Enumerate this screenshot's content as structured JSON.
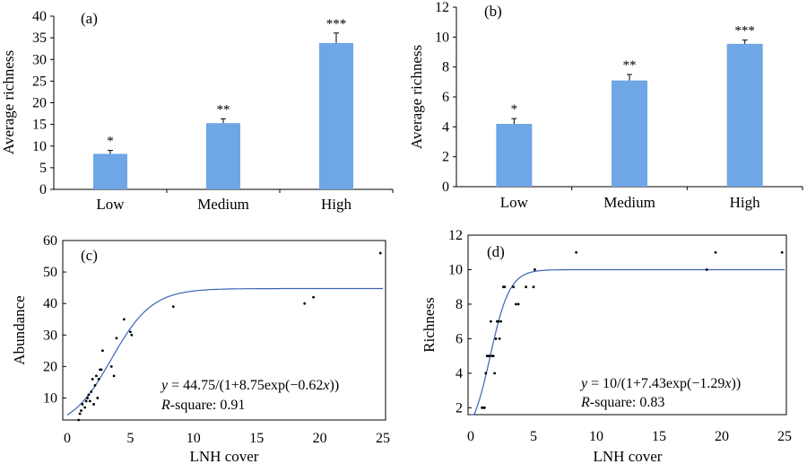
{
  "chart_data": [
    {
      "type": "bar",
      "panel_label": "(a)",
      "ylabel": "Average richness",
      "categories": [
        "Low",
        "Medium",
        "High"
      ],
      "values": [
        8.2,
        15.3,
        33.8
      ],
      "errors": [
        0.8,
        1.0,
        2.3
      ],
      "significance": [
        "*",
        "**",
        "***"
      ],
      "ylim": [
        0,
        40
      ],
      "yticks": [
        "0",
        "5",
        "10",
        "15",
        "20",
        "25",
        "30",
        "35",
        "40"
      ],
      "colors": {
        "bar": "#6ea6e6"
      }
    },
    {
      "type": "bar",
      "panel_label": "(b)",
      "ylabel": "Average richness",
      "categories": [
        "Low",
        "Medium",
        "High"
      ],
      "values": [
        4.2,
        7.1,
        9.55
      ],
      "errors": [
        0.35,
        0.4,
        0.25
      ],
      "significance": [
        "*",
        "**",
        "***"
      ],
      "ylim": [
        0,
        12
      ],
      "yticks": [
        "0",
        "2",
        "4",
        "6",
        "8",
        "10",
        "12"
      ],
      "colors": {
        "bar": "#6ea6e6"
      }
    },
    {
      "type": "scatter",
      "panel_label": "(c)",
      "xlabel": "LNH cover",
      "ylabel": "Abundance",
      "xlim": [
        0,
        25
      ],
      "ylim": [
        3,
        60
      ],
      "xticks": [
        "0",
        "5",
        "10",
        "15",
        "20",
        "25"
      ],
      "yticks": [
        "10",
        "20",
        "30",
        "40",
        "50",
        "60"
      ],
      "points": [
        [
          0.9,
          3
        ],
        [
          1.0,
          5
        ],
        [
          1.1,
          6
        ],
        [
          1.2,
          8
        ],
        [
          1.4,
          7
        ],
        [
          1.5,
          9
        ],
        [
          1.6,
          10
        ],
        [
          1.7,
          11
        ],
        [
          1.8,
          9
        ],
        [
          1.9,
          12
        ],
        [
          2.0,
          16
        ],
        [
          2.1,
          8
        ],
        [
          2.2,
          14
        ],
        [
          2.3,
          17
        ],
        [
          2.4,
          10
        ],
        [
          2.5,
          16
        ],
        [
          2.6,
          19
        ],
        [
          2.7,
          19
        ],
        [
          2.8,
          25
        ],
        [
          3.5,
          20
        ],
        [
          3.7,
          17
        ],
        [
          3.9,
          29
        ],
        [
          4.5,
          35
        ],
        [
          5.0,
          31
        ],
        [
          5.1,
          30
        ],
        [
          8.4,
          39
        ],
        [
          18.8,
          40
        ],
        [
          19.5,
          42
        ],
        [
          24.8,
          56
        ]
      ],
      "fit": {
        "A": 44.75,
        "B": 8.75,
        "k": 0.62
      },
      "equation": {
        "y": "y",
        "rest": " = 44.75/(1+8.75exp(−0.62",
        "x": "x",
        "close": "))"
      },
      "r_squared": {
        "r": "R",
        "rest": "-square: 0.91"
      },
      "colors": {
        "curve": "#3c64b4",
        "points": "#000000"
      }
    },
    {
      "type": "scatter",
      "panel_label": "(d)",
      "xlabel": "LNH cover",
      "ylabel": "Richness",
      "xlim": [
        0,
        25
      ],
      "ylim": [
        1.6,
        12
      ],
      "xticks": [
        "0",
        "5",
        "10",
        "15",
        "20",
        "25"
      ],
      "yticks": [
        "2",
        "4",
        "6",
        "8",
        "10",
        "12"
      ],
      "points": [
        [
          0.9,
          2
        ],
        [
          1.0,
          2
        ],
        [
          1.1,
          2
        ],
        [
          1.2,
          4
        ],
        [
          1.3,
          5
        ],
        [
          1.4,
          5
        ],
        [
          1.5,
          5
        ],
        [
          1.6,
          7
        ],
        [
          1.7,
          5
        ],
        [
          1.8,
          5
        ],
        [
          1.9,
          4
        ],
        [
          2.0,
          6
        ],
        [
          2.1,
          7
        ],
        [
          2.2,
          7
        ],
        [
          2.3,
          6
        ],
        [
          2.4,
          7
        ],
        [
          2.6,
          9
        ],
        [
          2.7,
          9
        ],
        [
          3.4,
          9
        ],
        [
          3.6,
          8
        ],
        [
          3.8,
          8
        ],
        [
          4.4,
          9
        ],
        [
          5.0,
          9
        ],
        [
          5.1,
          10
        ],
        [
          8.4,
          11
        ],
        [
          18.8,
          10
        ],
        [
          19.5,
          11
        ],
        [
          24.8,
          11
        ]
      ],
      "fit": {
        "A": 10,
        "B": 7.43,
        "k": 1.29
      },
      "equation": {
        "y": "y",
        "rest": " = 10/(1+7.43exp(−1.29",
        "x": "x",
        "close": "))"
      },
      "r_squared": {
        "r": "R",
        "rest": "-square: 0.83"
      },
      "colors": {
        "curve": "#3c64b4",
        "points": "#000000"
      }
    }
  ]
}
